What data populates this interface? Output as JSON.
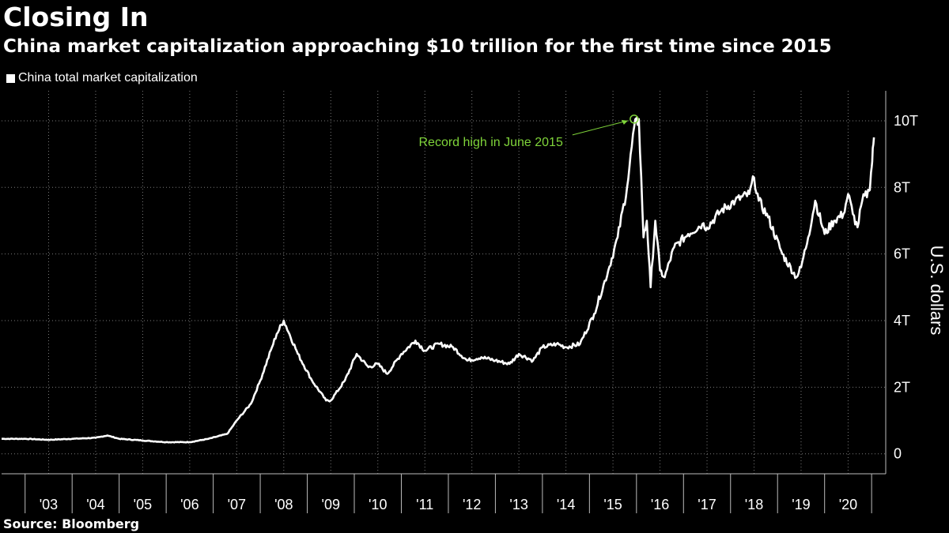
{
  "header": {
    "title": "Closing In",
    "subtitle": "China market capitalization approaching $10 trillion for the first time since 2015"
  },
  "legend": {
    "label": "China total market capitalization"
  },
  "footer": {
    "source": "Source: Bloomberg"
  },
  "colors": {
    "background": "#000000",
    "line": "#ffffff",
    "grid": "#7a7a7a",
    "annotation": "#7fd43a"
  },
  "chart_data": {
    "type": "line",
    "ylabel": "U.S. dollars",
    "ylim": [
      -0.6,
      10.9
    ],
    "xlim": [
      2002.0,
      2020.8
    ],
    "grid": true,
    "legend_position": "top-left",
    "y_ticks": [
      {
        "value": 0,
        "label": "0"
      },
      {
        "value": 2,
        "label": "2T"
      },
      {
        "value": 4,
        "label": "4T"
      },
      {
        "value": 6,
        "label": "6T"
      },
      {
        "value": 8,
        "label": "8T"
      },
      {
        "value": 10,
        "label": "10T"
      }
    ],
    "x_ticks": [
      {
        "value": 2003,
        "label": "'03"
      },
      {
        "value": 2004,
        "label": "'04"
      },
      {
        "value": 2005,
        "label": "'05"
      },
      {
        "value": 2006,
        "label": "'06"
      },
      {
        "value": 2007,
        "label": "'07"
      },
      {
        "value": 2008,
        "label": "'08"
      },
      {
        "value": 2009,
        "label": "'09"
      },
      {
        "value": 2010,
        "label": "'10"
      },
      {
        "value": 2011,
        "label": "'11"
      },
      {
        "value": 2012,
        "label": "'12"
      },
      {
        "value": 2013,
        "label": "'13"
      },
      {
        "value": 2014,
        "label": "'14"
      },
      {
        "value": 2015,
        "label": "'15"
      },
      {
        "value": 2016,
        "label": "'16"
      },
      {
        "value": 2017,
        "label": "'17"
      },
      {
        "value": 2018,
        "label": "'18"
      },
      {
        "value": 2019,
        "label": "'19"
      },
      {
        "value": 2020,
        "label": "'20"
      }
    ],
    "series": [
      {
        "name": "China total market capitalization",
        "x": [
          2002.0,
          2002.5,
          2003.0,
          2003.5,
          2004.0,
          2004.25,
          2004.5,
          2005.0,
          2005.5,
          2006.0,
          2006.4,
          2006.8,
          2007.0,
          2007.3,
          2007.5,
          2007.75,
          2007.85,
          2008.0,
          2008.3,
          2008.6,
          2008.9,
          2009.0,
          2009.3,
          2009.55,
          2009.8,
          2010.0,
          2010.2,
          2010.5,
          2010.8,
          2011.0,
          2011.3,
          2011.6,
          2011.9,
          2012.2,
          2012.5,
          2012.8,
          2013.0,
          2013.3,
          2013.5,
          2013.8,
          2014.0,
          2014.3,
          2014.6,
          2014.9,
          2015.1,
          2015.3,
          2015.45,
          2015.55,
          2015.65,
          2015.72,
          2015.8,
          2015.9,
          2016.0,
          2016.1,
          2016.3,
          2016.6,
          2016.9,
          2017.0,
          2017.3,
          2017.6,
          2017.9,
          2018.0,
          2018.1,
          2018.3,
          2018.6,
          2018.9,
          2019.0,
          2019.15,
          2019.3,
          2019.5,
          2019.7,
          2019.9,
          2020.0,
          2020.1,
          2020.2,
          2020.3,
          2020.45,
          2020.5,
          2020.55
        ],
        "y": [
          0.45,
          0.45,
          0.42,
          0.45,
          0.48,
          0.55,
          0.45,
          0.4,
          0.35,
          0.35,
          0.45,
          0.6,
          1.0,
          1.5,
          2.2,
          3.2,
          3.6,
          4.0,
          3.0,
          2.2,
          1.6,
          1.6,
          2.2,
          3.0,
          2.6,
          2.7,
          2.4,
          3.0,
          3.4,
          3.1,
          3.3,
          3.2,
          2.8,
          2.9,
          2.8,
          2.7,
          3.0,
          2.8,
          3.2,
          3.3,
          3.2,
          3.3,
          4.2,
          5.5,
          6.5,
          8.0,
          9.8,
          10.05,
          6.5,
          7.0,
          5.0,
          7.0,
          5.5,
          5.3,
          6.2,
          6.6,
          6.9,
          6.8,
          7.3,
          7.6,
          7.8,
          8.3,
          7.6,
          7.1,
          6.0,
          5.3,
          5.6,
          6.5,
          7.6,
          6.6,
          7.0,
          7.2,
          7.8,
          7.2,
          6.8,
          7.6,
          7.9,
          8.6,
          9.5
        ]
      }
    ],
    "annotations": [
      {
        "text": "Record high in June 2015",
        "x": 2015.45,
        "y": 10.05
      }
    ]
  }
}
